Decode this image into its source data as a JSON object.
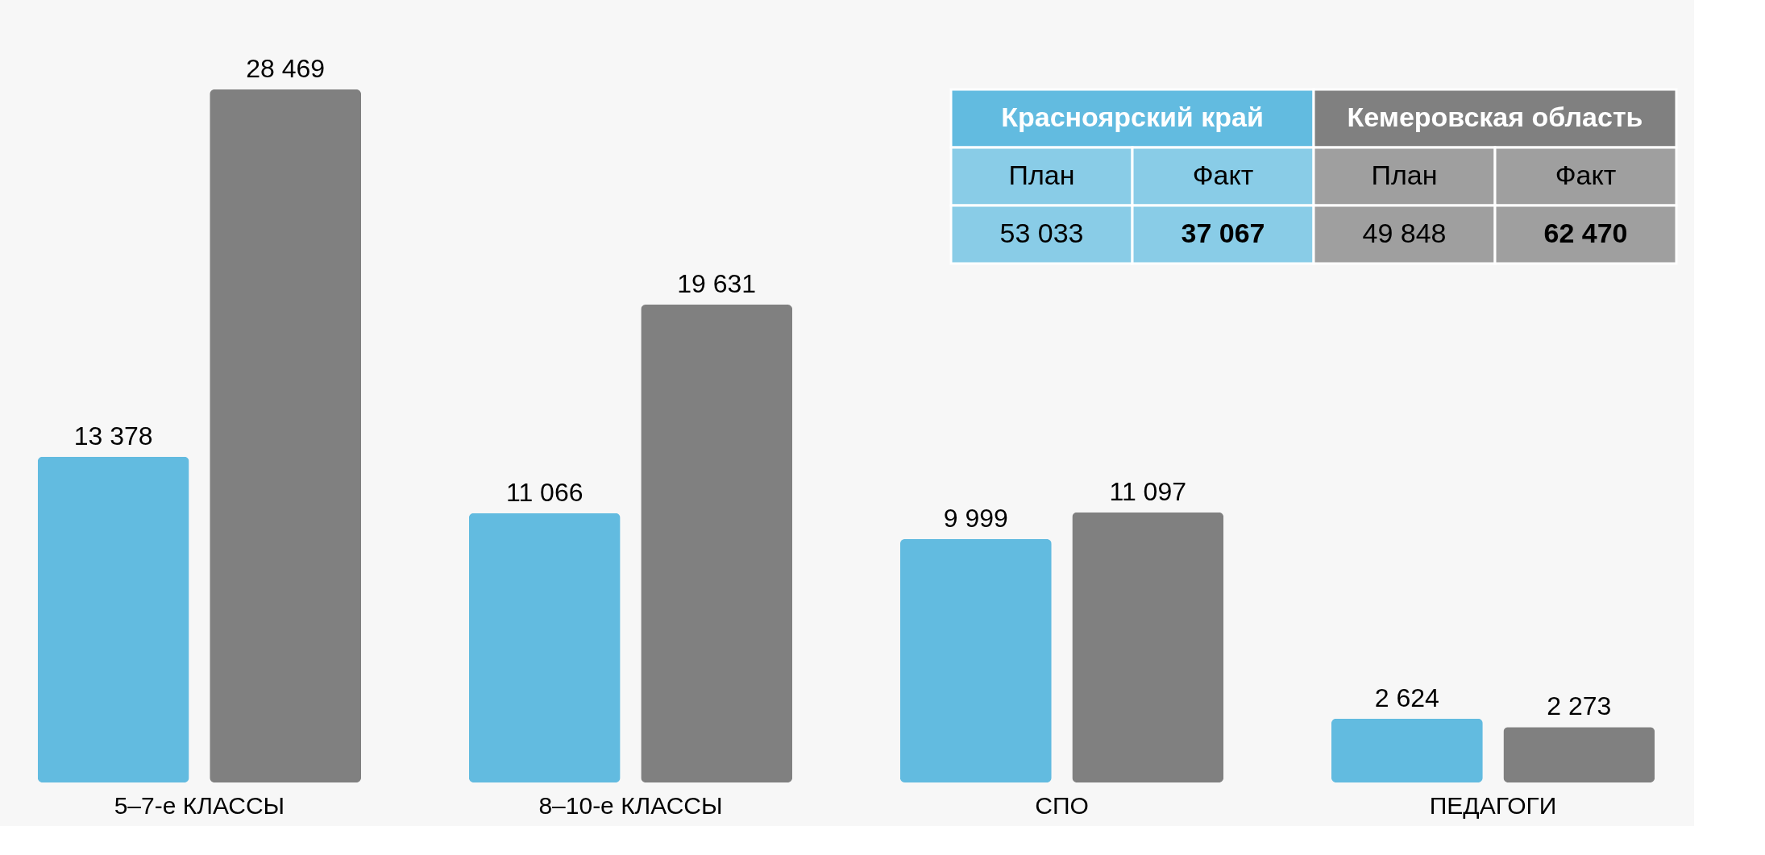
{
  "chart_data": {
    "type": "bar",
    "categories": [
      "5–7-е КЛАССЫ",
      "8–10-е КЛАССЫ",
      "СПО",
      "ПЕДАГОГИ"
    ],
    "series": [
      {
        "name": "Красноярский край",
        "color": "#62bbe0",
        "values": [
          13378,
          11066,
          9999,
          2624
        ],
        "value_labels": [
          "13 378",
          "11 066",
          "9 999",
          "2 624"
        ]
      },
      {
        "name": "Кемеровская область",
        "color": "#808080",
        "values": [
          28469,
          19631,
          11097,
          2273
        ],
        "value_labels": [
          "28 469",
          "19 631",
          "11 097",
          "2 273"
        ]
      }
    ],
    "annotations": [
      "План",
      "Факт",
      "План",
      "Факт",
      "53 033",
      "37 067",
      "49 848",
      "62 470"
    ],
    "legend": "top right",
    "tick_labels": "x"
  }
}
